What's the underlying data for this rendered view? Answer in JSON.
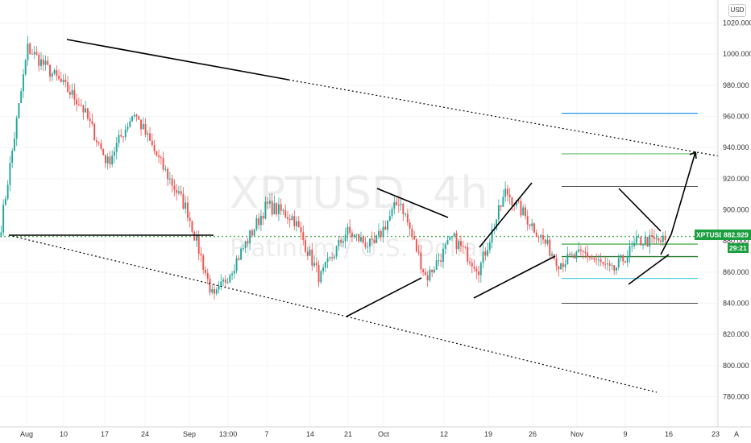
{
  "symbol": "XPTUSD",
  "watermark": {
    "line1": "XPTUSD, 4h",
    "line2": "Platinum / U.S. Dollar"
  },
  "currency_button": "USD",
  "auto_button": "A",
  "price_tag": {
    "symbol": "XPTUSD",
    "price": "882.929",
    "countdown": "29:21"
  },
  "y_axis": {
    "ticks": [
      "1020.000",
      "1000.000",
      "980.000",
      "960.000",
      "940.000",
      "920.000",
      "900.000",
      "880.000",
      "860.000",
      "840.000",
      "820.000",
      "800.000",
      "780.000"
    ]
  },
  "x_axis": {
    "ticks": [
      "Aug",
      "10",
      "17",
      "24",
      "Sep",
      "13:00",
      "7",
      "14",
      "21",
      "Oct",
      "12",
      "19",
      "26",
      "Nov",
      "9",
      "16",
      "23"
    ]
  },
  "colors": {
    "up": "#26a69a",
    "down": "#ef5350",
    "price_line": "#4caf50",
    "tag": "#1b9e3e",
    "blue_line": "#2196f3",
    "cyan_line": "#4dd0e1"
  },
  "chart_data": {
    "type": "candlestick",
    "ylim": [
      770,
      1030
    ],
    "price_levels": [
      962,
      936,
      915,
      882.9,
      878,
      870,
      856,
      840
    ],
    "path_prices": [
      890,
      1004,
      986,
      968,
      930,
      963,
      930,
      900,
      842,
      872,
      903,
      895,
      856,
      886,
      876,
      907,
      856,
      882,
      862,
      912,
      890,
      866,
      872,
      860,
      880,
      880
    ]
  }
}
